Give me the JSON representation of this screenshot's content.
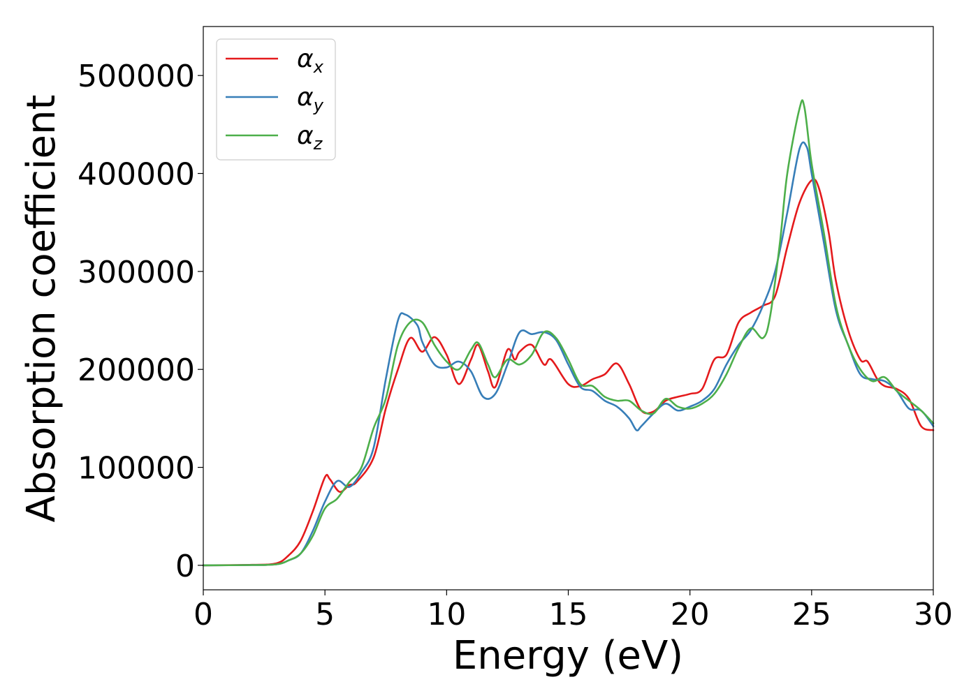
{
  "chart_data": {
    "type": "line",
    "title": "",
    "xlabel": "Energy (eV)",
    "ylabel": "Absorption coefficient",
    "xlim": [
      0,
      30
    ],
    "ylim": [
      -25000,
      550000
    ],
    "xticks": [
      0,
      5,
      10,
      15,
      20,
      25,
      30
    ],
    "xtick_labels": [
      "0",
      "5",
      "10",
      "15",
      "20",
      "25",
      "30"
    ],
    "yticks": [
      0,
      100000,
      200000,
      300000,
      400000,
      500000
    ],
    "ytick_labels": [
      "0",
      "100000",
      "200000",
      "300000",
      "400000",
      "500000"
    ],
    "grid": false,
    "legend_placement": "top-left",
    "series": [
      {
        "name": "αx",
        "symbol": "α",
        "subscript": "x",
        "color": "#e41a1c",
        "x": [
          0,
          2,
          3,
          3.5,
          4,
          4.5,
          5,
          5.2,
          5.6,
          6,
          6.3,
          7,
          7.5,
          8,
          8.5,
          9,
          9.5,
          10,
          10.5,
          11,
          11.3,
          11.7,
          12,
          12.5,
          12.8,
          13,
          13.5,
          14,
          14.3,
          15,
          15.5,
          16,
          16.5,
          17,
          17.5,
          18,
          18.5,
          19,
          19.5,
          20,
          20.5,
          21,
          21.5,
          22,
          22.5,
          23,
          23.5,
          24,
          24.5,
          25,
          25.3,
          25.7,
          26,
          26.5,
          27,
          27.3,
          27.7,
          28,
          28.5,
          29,
          29.5,
          30
        ],
        "y": [
          0,
          500,
          2000,
          10000,
          25000,
          55000,
          90000,
          88000,
          75000,
          82000,
          85000,
          110000,
          160000,
          200000,
          232000,
          218000,
          233000,
          215000,
          185000,
          210000,
          225000,
          198000,
          182000,
          220000,
          210000,
          218000,
          225000,
          205000,
          210000,
          185000,
          183000,
          190000,
          195000,
          206000,
          185000,
          158000,
          157000,
          168000,
          172000,
          175000,
          180000,
          210000,
          215000,
          248000,
          258000,
          265000,
          275000,
          325000,
          370000,
          393000,
          385000,
          340000,
          290000,
          240000,
          210000,
          208000,
          190000,
          183000,
          180000,
          170000,
          142000,
          138000
        ]
      },
      {
        "name": "αy",
        "symbol": "α",
        "subscript": "y",
        "color": "#377eb8",
        "x": [
          0,
          2,
          3,
          3.5,
          4,
          4.5,
          5,
          5.5,
          6,
          6.5,
          7,
          7.5,
          8,
          8.3,
          8.8,
          9,
          9.5,
          10,
          10.5,
          11,
          11.5,
          12,
          12.5,
          13,
          13.5,
          14,
          14.5,
          15,
          15.5,
          16,
          16.5,
          17,
          17.5,
          17.8,
          18,
          18.5,
          19,
          19.5,
          20,
          20.5,
          21,
          21.5,
          22,
          22.5,
          23,
          23.5,
          24,
          24.5,
          24.8,
          25,
          25.5,
          26,
          26.5,
          27,
          27.5,
          28,
          28.5,
          29,
          29.5,
          30
        ],
        "y": [
          0,
          300,
          1000,
          5000,
          12000,
          35000,
          65000,
          86000,
          80000,
          95000,
          120000,
          190000,
          250000,
          256000,
          245000,
          228000,
          205000,
          202000,
          208000,
          198000,
          172000,
          175000,
          205000,
          238000,
          236000,
          238000,
          230000,
          205000,
          182000,
          178000,
          168000,
          162000,
          150000,
          138000,
          142000,
          155000,
          165000,
          158000,
          162000,
          168000,
          180000,
          205000,
          225000,
          240000,
          265000,
          300000,
          360000,
          425000,
          427000,
          400000,
          330000,
          260000,
          225000,
          195000,
          190000,
          188000,
          178000,
          160000,
          158000,
          142000
        ]
      },
      {
        "name": "αz",
        "symbol": "α",
        "subscript": "z",
        "color": "#4daf4a",
        "x": [
          0,
          2,
          3,
          3.5,
          4,
          4.5,
          5,
          5.5,
          6,
          6.5,
          7,
          7.5,
          8,
          8.5,
          9,
          9.5,
          10,
          10.5,
          11,
          11.3,
          11.7,
          12,
          12.5,
          13,
          13.5,
          14,
          14.5,
          15,
          15.5,
          16,
          16.5,
          17,
          17.5,
          18,
          18.5,
          19,
          19.5,
          20,
          20.5,
          21,
          21.5,
          22,
          22.5,
          23,
          23.3,
          23.7,
          24,
          24.5,
          24.7,
          25,
          25.5,
          26,
          26.5,
          27,
          27.5,
          28,
          28.5,
          29,
          29.5,
          30
        ],
        "y": [
          0,
          300,
          1000,
          5000,
          12000,
          30000,
          58000,
          68000,
          85000,
          100000,
          140000,
          170000,
          225000,
          248000,
          248000,
          225000,
          208000,
          200000,
          220000,
          227000,
          205000,
          192000,
          210000,
          205000,
          215000,
          238000,
          232000,
          210000,
          185000,
          183000,
          172000,
          168000,
          168000,
          158000,
          155000,
          170000,
          162000,
          160000,
          165000,
          175000,
          195000,
          222000,
          242000,
          232000,
          255000,
          330000,
          400000,
          466000,
          468000,
          410000,
          340000,
          265000,
          225000,
          200000,
          188000,
          192000,
          178000,
          168000,
          158000,
          145000
        ]
      }
    ]
  }
}
